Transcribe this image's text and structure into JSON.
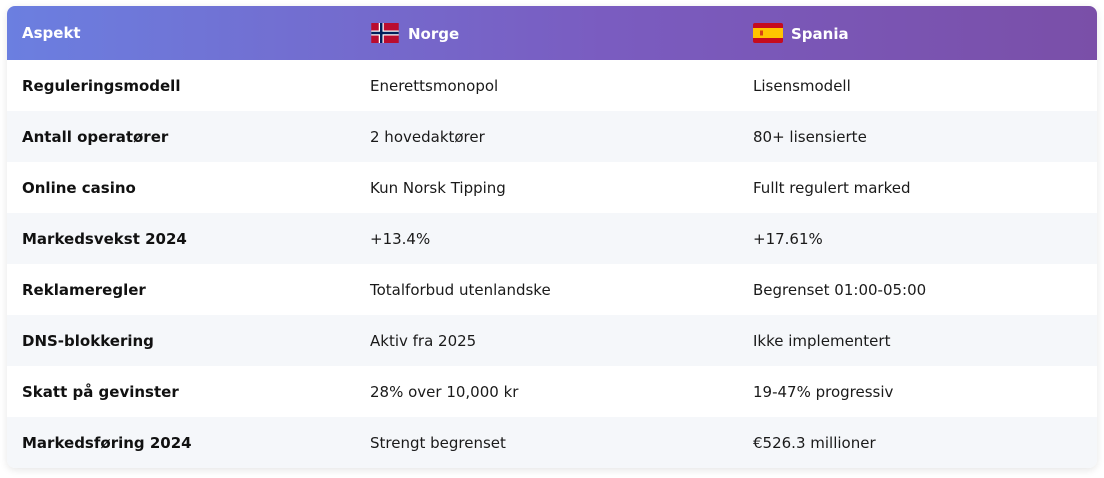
{
  "header": {
    "aspect": "Aspekt",
    "norway": "Norge",
    "spain": "Spania",
    "norway_flag_icon": "norway-flag-icon",
    "spain_flag_icon": "spain-flag-icon"
  },
  "colors": {
    "header_gradient_start": "#6b7fe0",
    "header_gradient_end": "#7a4fa8",
    "row_alt": "#f5f7fa"
  },
  "rows": [
    {
      "aspect": "Reguleringsmodell",
      "norway": "Enerettsmonopol",
      "spain": "Lisensmodell"
    },
    {
      "aspect": "Antall operatører",
      "norway": "2 hovedaktører",
      "spain": "80+ lisensierte"
    },
    {
      "aspect": "Online casino",
      "norway": "Kun Norsk Tipping",
      "spain": "Fullt regulert marked"
    },
    {
      "aspect": "Markedsvekst 2024",
      "norway": "+13.4%",
      "spain": "+17.61%"
    },
    {
      "aspect": "Reklameregler",
      "norway": "Totalforbud utenlandske",
      "spain": "Begrenset 01:00-05:00"
    },
    {
      "aspect": "DNS-blokkering",
      "norway": "Aktiv fra 2025",
      "spain": "Ikke implementert"
    },
    {
      "aspect": "Skatt på gevinster",
      "norway": "28% over 10,000 kr",
      "spain": "19-47% progressiv"
    },
    {
      "aspect": "Markedsføring 2024",
      "norway": "Strengt begrenset",
      "spain": "€526.3 millioner"
    }
  ]
}
